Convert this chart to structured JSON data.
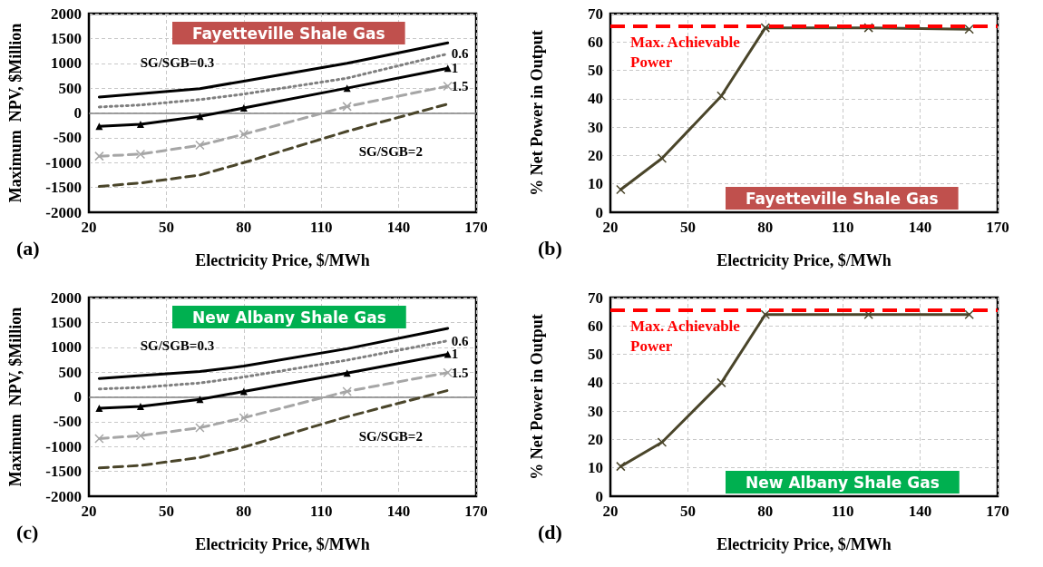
{
  "chart_data": [
    {
      "type": "line",
      "subtitle": "Fayetteville Shale Gas",
      "xlabel": "Electricity Price, $/MWh",
      "ylabel": "Maximum  NPV, $Million",
      "annotations": [
        "(a)"
      ],
      "x": [
        24,
        40,
        63,
        80,
        120,
        159
      ],
      "xlim": [
        20,
        170
      ],
      "xticks": [
        20,
        50,
        80,
        110,
        140,
        170
      ],
      "ylim": [
        -2000,
        2000
      ],
      "yticks": [
        -2000,
        -1500,
        -1000,
        -500,
        0,
        500,
        1000,
        1500,
        2000
      ],
      "grid": true,
      "ref_lines": [
        {
          "axis": "y",
          "value": 0,
          "color": "#808080"
        }
      ],
      "series": [
        {
          "name": "SG/SGB=0.3",
          "color": "#000000",
          "line_style": "solid",
          "marker": "none",
          "values": [
            320,
            390,
            490,
            640,
            1000,
            1410
          ]
        },
        {
          "name": "0.6",
          "color": "#7f7f7f",
          "line_style": "dotted",
          "marker": "none",
          "values": [
            120,
            160,
            270,
            380,
            700,
            1190
          ]
        },
        {
          "name": "1",
          "color": "#000000",
          "line_style": "solid",
          "marker": "triangle",
          "values": [
            -270,
            -230,
            -70,
            100,
            500,
            900
          ]
        },
        {
          "name": "1.5",
          "color": "#a6a6a6",
          "line_style": "dashed",
          "marker": "cross",
          "values": [
            -870,
            -830,
            -650,
            -430,
            130,
            540
          ]
        },
        {
          "name": "SG/SGB=2",
          "color": "#4a452a",
          "line_style": "dashed",
          "marker": "none",
          "values": [
            -1480,
            -1410,
            -1250,
            -1000,
            -370,
            180
          ]
        }
      ]
    },
    {
      "type": "line",
      "subtitle": "Fayetteville Shale Gas",
      "xlabel": "Electricity Price, $/MWh",
      "ylabel": "% Net Power in Output",
      "annotations": [
        "(b)"
      ],
      "x": [
        24,
        40,
        63,
        80,
        120,
        159
      ],
      "xlim": [
        20,
        170
      ],
      "xticks": [
        20,
        50,
        80,
        110,
        140,
        170
      ],
      "ylim": [
        0,
        70
      ],
      "yticks": [
        0,
        10,
        20,
        30,
        40,
        50,
        60,
        70
      ],
      "grid": true,
      "ref_lines": [
        {
          "axis": "y",
          "value": 65.5,
          "label": "Max. Achievable\nPower",
          "color": "#ff0000",
          "line_style": "dashed"
        }
      ],
      "series": [
        {
          "color": "#4a452a",
          "line_style": "solid",
          "marker": "cross",
          "values": [
            8,
            19,
            41,
            65,
            65,
            64.5
          ]
        }
      ]
    },
    {
      "type": "line",
      "subtitle": "New Albany Shale Gas",
      "xlabel": "Electricity Price, $/MWh",
      "ylabel": "Maximum  NPV, $Million",
      "annotations": [
        "(c)"
      ],
      "x": [
        24,
        40,
        63,
        80,
        120,
        159
      ],
      "xlim": [
        20,
        170
      ],
      "xticks": [
        20,
        50,
        80,
        110,
        140,
        170
      ],
      "ylim": [
        -2000,
        2000
      ],
      "yticks": [
        -2000,
        -1500,
        -1000,
        -500,
        0,
        500,
        1000,
        1500,
        2000
      ],
      "grid": true,
      "ref_lines": [
        {
          "axis": "y",
          "value": 0,
          "color": "#808080"
        }
      ],
      "series": [
        {
          "name": "SG/SGB=0.3",
          "color": "#000000",
          "line_style": "solid",
          "marker": "none",
          "values": [
            370,
            430,
            510,
            620,
            970,
            1380
          ]
        },
        {
          "name": "0.6",
          "color": "#7f7f7f",
          "line_style": "dotted",
          "marker": "none",
          "values": [
            160,
            190,
            280,
            400,
            740,
            1130
          ]
        },
        {
          "name": "1",
          "color": "#000000",
          "line_style": "solid",
          "marker": "triangle",
          "values": [
            -230,
            -190,
            -50,
            110,
            480,
            860
          ]
        },
        {
          "name": "1.5",
          "color": "#a6a6a6",
          "line_style": "dashed",
          "marker": "cross",
          "values": [
            -840,
            -780,
            -620,
            -420,
            110,
            490
          ]
        },
        {
          "name": "SG/SGB=2",
          "color": "#4a452a",
          "line_style": "dashed",
          "marker": "none",
          "values": [
            -1430,
            -1380,
            -1220,
            -1010,
            -400,
            130
          ]
        }
      ]
    },
    {
      "type": "line",
      "subtitle": "New Albany Shale Gas",
      "xlabel": "Electricity Price, $/MWh",
      "ylabel": "% Net Power in Output",
      "annotations": [
        "(d)"
      ],
      "x": [
        24,
        40,
        63,
        80,
        120,
        159
      ],
      "xlim": [
        20,
        170
      ],
      "xticks": [
        20,
        50,
        80,
        110,
        140,
        170
      ],
      "ylim": [
        0,
        70
      ],
      "yticks": [
        0,
        10,
        20,
        30,
        40,
        50,
        60,
        70
      ],
      "grid": true,
      "ref_lines": [
        {
          "axis": "y",
          "value": 65.5,
          "label": "Max. Achievable\nPower",
          "color": "#ff0000",
          "line_style": "dashed"
        }
      ],
      "series": [
        {
          "color": "#4a452a",
          "line_style": "solid",
          "marker": "cross",
          "values": [
            10.5,
            19,
            40,
            64,
            64,
            64
          ]
        }
      ]
    }
  ]
}
